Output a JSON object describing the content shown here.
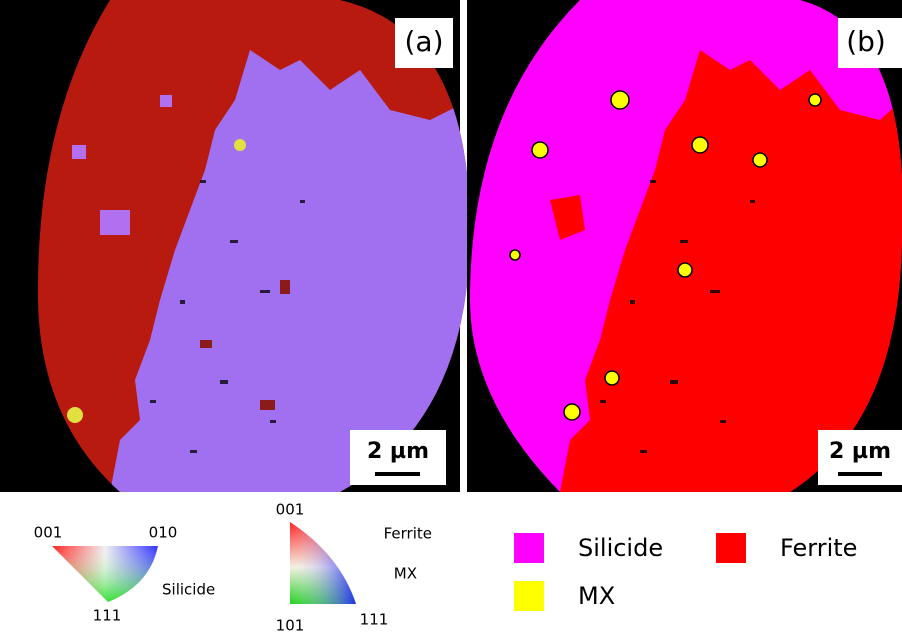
{
  "panels": [
    {
      "label": "(a)",
      "scale_bar": "2 µm"
    },
    {
      "label": "(b)",
      "scale_bar": "2 µm"
    }
  ],
  "ipf_keys": [
    {
      "corners": [
        "001",
        "010",
        "111"
      ],
      "phases": [
        "Silicide"
      ]
    },
    {
      "corners": [
        "001",
        "101",
        "111"
      ],
      "phases": [
        "Ferrite",
        "MX"
      ]
    }
  ],
  "legend": [
    {
      "label": "Silicide",
      "color": "#ff00ff"
    },
    {
      "label": "Ferrite",
      "color": "#ff0000"
    },
    {
      "label": "MX",
      "color": "#ffff00"
    }
  ]
}
